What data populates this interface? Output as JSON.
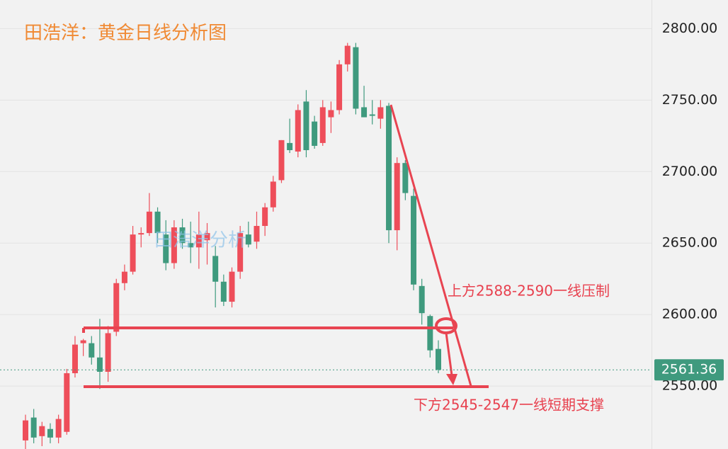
{
  "chart_data": {
    "type": "candlestick",
    "title": "田浩洋：黄金日线分析图",
    "watermark": "田浩洋分析",
    "annotations": [
      "上方2588-2590一线压制",
      "下方2545-2547一线短期支撑"
    ],
    "up_color": "#ee4e5a",
    "down_color": "#3f9a7e",
    "ylim": [
      2506,
      2820
    ],
    "yticks": [
      {
        "value": 2550,
        "label": "2550.00"
      },
      {
        "value": 2600,
        "label": "2600.00"
      },
      {
        "value": 2650,
        "label": "2650.00"
      },
      {
        "value": 2700,
        "label": "2700.00"
      },
      {
        "value": 2750,
        "label": "2750.00"
      },
      {
        "value": 2800,
        "label": "2800.00"
      }
    ],
    "last_price": 2561.36,
    "grid": true,
    "open": [
      2512,
      2528,
      2515,
      2520,
      2514,
      2518,
      2559,
      2580,
      2580,
      2570,
      2560,
      2588,
      2622,
      2630,
      2656,
      2657,
      2672,
      2656,
      2636,
      2661,
      2650,
      2647,
      2652,
      2641,
      2623,
      2609,
      2630,
      2656,
      2651,
      2662,
      2675,
      2694,
      2720,
      2714,
      2749,
      2735,
      2720,
      2738,
      2743,
      2775,
      2787,
      2745,
      2740,
      2737,
      2746,
      2659,
      2706,
      2683,
      2620,
      2599,
      2576
    ],
    "high": [
      2530,
      2534,
      2525,
      2524,
      2530,
      2562,
      2585,
      2583,
      2585,
      2597,
      2592,
      2625,
      2635,
      2662,
      2661,
      2685,
      2675,
      2666,
      2666,
      2667,
      2665,
      2672,
      2664,
      2648,
      2628,
      2633,
      2662,
      2665,
      2672,
      2678,
      2697,
      2722,
      2737,
      2747,
      2757,
      2739,
      2750,
      2749,
      2778,
      2790,
      2790,
      2760,
      2750,
      2750,
      2748,
      2710,
      2708,
      2688,
      2625,
      2600,
      2582
    ],
    "low": [
      2506,
      2510,
      2508,
      2510,
      2510,
      2516,
      2556,
      2571,
      2565,
      2548,
      2553,
      2585,
      2617,
      2628,
      2647,
      2655,
      2650,
      2631,
      2632,
      2646,
      2636,
      2632,
      2635,
      2605,
      2606,
      2605,
      2625,
      2647,
      2646,
      2655,
      2672,
      2692,
      2713,
      2710,
      2710,
      2716,
      2718,
      2727,
      2740,
      2770,
      2740,
      2738,
      2733,
      2730,
      2650,
      2645,
      2680,
      2617,
      2593,
      2570,
      2559
    ],
    "close": [
      2526,
      2514,
      2522,
      2514,
      2527,
      2559,
      2579,
      2582,
      2570,
      2560,
      2587,
      2622,
      2630,
      2656,
      2657,
      2672,
      2657,
      2636,
      2661,
      2650,
      2647,
      2656,
      2657,
      2623,
      2609,
      2630,
      2657,
      2649,
      2662,
      2675,
      2693,
      2722,
      2715,
      2743,
      2715,
      2718,
      2745,
      2743,
      2775,
      2788,
      2744,
      2738,
      2739,
      2745,
      2659,
      2706,
      2685,
      2621,
      2601,
      2575,
      2561.36
    ]
  }
}
